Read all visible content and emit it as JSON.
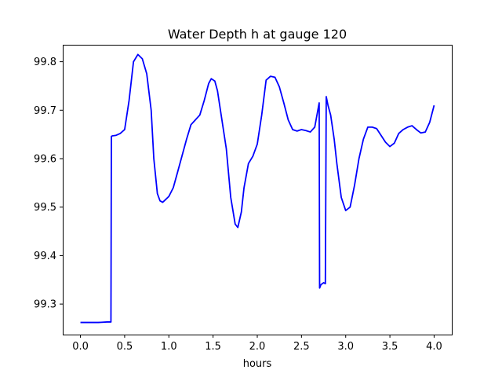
{
  "chart_data": {
    "type": "line",
    "title": "Water Depth h at gauge 120",
    "xlabel": "hours",
    "ylabel": "",
    "xlim": [
      -0.2,
      4.2
    ],
    "ylim": [
      99.237,
      99.835
    ],
    "xticks": [
      0.0,
      0.5,
      1.0,
      1.5,
      2.0,
      2.5,
      3.0,
      3.5,
      4.0
    ],
    "xtick_labels": [
      "0.0",
      "0.5",
      "1.0",
      "1.5",
      "2.0",
      "2.5",
      "3.0",
      "3.5",
      "4.0"
    ],
    "yticks": [
      99.3,
      99.4,
      99.5,
      99.6,
      99.7,
      99.8
    ],
    "ytick_labels": [
      "99.3",
      "99.4",
      "99.5",
      "99.6",
      "99.7",
      "99.8"
    ],
    "grid": false,
    "series": [
      {
        "color": "#0000ff",
        "x": [
          0.0,
          0.1,
          0.2,
          0.3,
          0.345,
          0.35,
          0.36,
          0.4,
          0.45,
          0.5,
          0.55,
          0.6,
          0.65,
          0.7,
          0.75,
          0.8,
          0.83,
          0.87,
          0.9,
          0.93,
          0.96,
          1.0,
          1.05,
          1.1,
          1.2,
          1.25,
          1.3,
          1.35,
          1.4,
          1.45,
          1.48,
          1.52,
          1.55,
          1.6,
          1.65,
          1.7,
          1.75,
          1.78,
          1.82,
          1.85,
          1.9,
          1.95,
          2.0,
          2.05,
          2.1,
          2.15,
          2.2,
          2.25,
          2.3,
          2.35,
          2.4,
          2.45,
          2.5,
          2.55,
          2.6,
          2.65,
          2.7,
          2.705,
          2.72,
          2.75,
          2.77,
          2.78,
          2.8,
          2.83,
          2.87,
          2.9,
          2.95,
          3.0,
          3.05,
          3.1,
          3.15,
          3.2,
          3.25,
          3.3,
          3.35,
          3.4,
          3.45,
          3.5,
          3.55,
          3.6,
          3.65,
          3.7,
          3.75,
          3.8,
          3.85,
          3.9,
          3.95,
          4.0
        ],
        "y": [
          99.262,
          99.262,
          99.262,
          99.263,
          99.263,
          99.646,
          99.647,
          99.648,
          99.652,
          99.66,
          99.72,
          99.8,
          99.815,
          99.806,
          99.775,
          99.7,
          99.6,
          99.528,
          99.513,
          99.51,
          99.515,
          99.522,
          99.54,
          99.573,
          99.64,
          99.67,
          99.68,
          99.69,
          99.72,
          99.755,
          99.765,
          99.76,
          99.74,
          99.68,
          99.62,
          99.52,
          99.465,
          99.458,
          99.49,
          99.54,
          99.59,
          99.605,
          99.63,
          99.69,
          99.762,
          99.77,
          99.768,
          99.748,
          99.715,
          99.68,
          99.66,
          99.657,
          99.66,
          99.658,
          99.655,
          99.665,
          99.715,
          99.333,
          99.34,
          99.344,
          99.342,
          99.728,
          99.71,
          99.69,
          99.64,
          99.59,
          99.52,
          99.493,
          99.5,
          99.545,
          99.6,
          99.64,
          99.665,
          99.665,
          99.662,
          99.648,
          99.634,
          99.625,
          99.632,
          99.652,
          99.66,
          99.665,
          99.668,
          99.66,
          99.653,
          99.655,
          99.675,
          99.71
        ]
      }
    ]
  }
}
